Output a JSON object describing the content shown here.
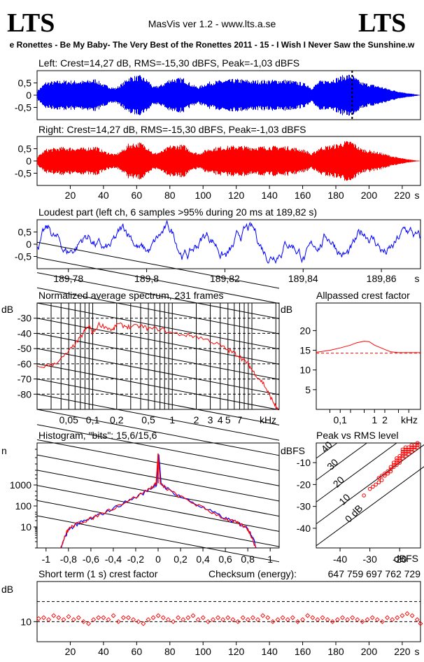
{
  "header": {
    "logo_left": "LTS",
    "logo_right": "LTS",
    "app_title": "MasVis ver 1.2 - www.lts.a.se",
    "track": "e Ronettes - Be My Baby- The Very Best of the Ronettes 2011 - 15 - I Wish I Never Saw the Sunshine.w"
  },
  "colors": {
    "left": "#0000ff",
    "right": "#ff0000",
    "grid": "#000000",
    "ref_line": "#ff0000"
  },
  "chart_data": [
    {
      "id": "left-waveform",
      "type": "area",
      "title": "Left: Crest=14,27 dB, RMS=-15,30 dBFS, Peak=-1,03 dBFS",
      "y_ticks": [
        "0,5",
        "0",
        "-0,5"
      ],
      "ylim": [
        -1,
        1
      ],
      "xlim": [
        0,
        231
      ],
      "marker_time": 189.82,
      "envelope": {
        "t": [
          0,
          5,
          15,
          28,
          35,
          40,
          47,
          52,
          55,
          62,
          67,
          70,
          75,
          80,
          88,
          93,
          97,
          103,
          110,
          120,
          130,
          140,
          150,
          158,
          163,
          165,
          170,
          180,
          185,
          189,
          195,
          205,
          215,
          222,
          231
        ],
        "a": [
          0.2,
          0.55,
          0.62,
          0.6,
          0.68,
          0.45,
          0.3,
          0.55,
          0.78,
          0.82,
          0.62,
          0.35,
          0.45,
          0.7,
          0.72,
          0.45,
          0.35,
          0.55,
          0.62,
          0.68,
          0.62,
          0.64,
          0.65,
          0.55,
          0.45,
          0.3,
          0.6,
          0.72,
          0.85,
          0.88,
          0.55,
          0.4,
          0.2,
          0.1,
          0.0
        ]
      }
    },
    {
      "id": "right-waveform",
      "type": "area",
      "title": "Right: Crest=14,27 dB, RMS=-15,30 dBFS, Peak=-1,03 dBFS",
      "y_ticks": [
        "0,5",
        "0",
        "-0,5"
      ],
      "ylim": [
        -1,
        1
      ],
      "xlim": [
        0,
        231
      ],
      "x_ticks": [
        "20",
        "40",
        "60",
        "80",
        "100",
        "120",
        "140",
        "160",
        "180",
        "200",
        "220",
        "s"
      ],
      "envelope": {
        "t": [
          0,
          5,
          15,
          28,
          35,
          40,
          47,
          52,
          55,
          62,
          67,
          70,
          75,
          80,
          88,
          93,
          97,
          103,
          110,
          120,
          130,
          140,
          150,
          158,
          163,
          165,
          170,
          180,
          185,
          189,
          195,
          205,
          215,
          222,
          231
        ],
        "a": [
          0.18,
          0.5,
          0.58,
          0.55,
          0.62,
          0.42,
          0.28,
          0.5,
          0.72,
          0.78,
          0.58,
          0.32,
          0.42,
          0.65,
          0.68,
          0.42,
          0.32,
          0.52,
          0.6,
          0.64,
          0.6,
          0.62,
          0.62,
          0.52,
          0.42,
          0.28,
          0.58,
          0.7,
          0.82,
          0.85,
          0.52,
          0.38,
          0.18,
          0.08,
          0.0
        ]
      }
    },
    {
      "id": "loudest-part",
      "type": "line",
      "title": "Loudest part (left  ch, 6 samples >95% during 20 ms at 189,82 s)",
      "y_ticks": [
        "0,5",
        "0",
        "-0,5"
      ],
      "ylim": [
        -1,
        1
      ],
      "xlim": [
        189.772,
        189.87
      ],
      "x_ticks": [
        "189,78",
        "189,8",
        "189,82",
        "189,84",
        "189,86",
        "s"
      ]
    },
    {
      "id": "avg-spectrum",
      "type": "line",
      "title": "Normalized average spectrum, 231 frames",
      "ylabel": "dB",
      "y_ticks": [
        "-30",
        "-40",
        "-50",
        "-60",
        "-70",
        "-80"
      ],
      "ylim": [
        -90,
        -20
      ],
      "x_ticks": [
        "0,05",
        "0,1",
        "0,2",
        "0,5",
        "1",
        "2",
        "3",
        "4",
        "5",
        "7",
        "kHz"
      ],
      "xlim": [
        0.02,
        22
      ],
      "freq_khz": [
        0.02,
        0.03,
        0.04,
        0.05,
        0.06,
        0.07,
        0.08,
        0.09,
        0.1,
        0.12,
        0.15,
        0.18,
        0.2,
        0.25,
        0.3,
        0.4,
        0.5,
        0.7,
        1,
        1.5,
        2,
        3,
        4,
        5,
        6,
        7,
        8,
        9,
        10,
        12,
        14,
        16,
        18,
        20,
        22
      ],
      "db": [
        -62,
        -61,
        -57,
        -52,
        -47,
        -43,
        -38,
        -35,
        -40,
        -34,
        -36,
        -38,
        -34,
        -35,
        -36,
        -35,
        -37,
        -37,
        -40,
        -41,
        -42,
        -45,
        -48,
        -51,
        -53,
        -55,
        -58,
        -60,
        -64,
        -69,
        -73,
        -79,
        -84,
        -88,
        -92
      ]
    },
    {
      "id": "allpassed-crest",
      "type": "line",
      "title": "Allpassed crest factor",
      "ylabel": "dB",
      "y_ticks": [
        "20",
        "15",
        "10",
        "5"
      ],
      "ylim": [
        0,
        27
      ],
      "x_ticks": [
        "0,1",
        "1",
        "2",
        "kHz"
      ],
      "xlim": [
        0.02,
        22
      ],
      "freq_khz": [
        0.02,
        0.05,
        0.1,
        0.2,
        0.3,
        0.5,
        0.7,
        1,
        2,
        3,
        5,
        10,
        22
      ],
      "db": [
        14.5,
        15,
        15.6,
        16.3,
        16.9,
        17.3,
        17.2,
        16.3,
        15.2,
        14.6,
        14.4,
        14.4,
        14.4
      ],
      "ref_db": 14.27
    },
    {
      "id": "histogram",
      "type": "line",
      "title": "Histogram, \"bits\": 15,6/15,6",
      "ylabel": "n",
      "y_ticks": [
        "1000",
        "100",
        "10"
      ],
      "ylim": [
        1,
        100000
      ],
      "x_ticks": [
        "-1",
        "-0,8",
        "-0,6",
        "-0,4",
        "-0,2",
        "0",
        "0,2",
        "0,4",
        "0,6",
        "0,8",
        "1"
      ],
      "xlim": [
        -1.08,
        1.08
      ],
      "x": [
        -0.87,
        -0.84,
        -0.82,
        -0.8,
        -0.75,
        -0.7,
        -0.65,
        -0.6,
        -0.5,
        -0.4,
        -0.3,
        -0.2,
        -0.1,
        -0.05,
        -0.02,
        0,
        0.02,
        0.05,
        0.1,
        0.2,
        0.3,
        0.4,
        0.5,
        0.6,
        0.65,
        0.7,
        0.75,
        0.8,
        0.82,
        0.84,
        0.87
      ],
      "n": [
        1,
        3,
        5,
        8,
        12,
        16,
        20,
        25,
        45,
        80,
        150,
        270,
        550,
        850,
        1100,
        30000,
        1100,
        850,
        550,
        270,
        150,
        80,
        45,
        25,
        20,
        16,
        12,
        8,
        5,
        3,
        1
      ]
    },
    {
      "id": "peak-vs-rms",
      "type": "scatter",
      "title": "Peak vs RMS level",
      "ylabel": "dBFS",
      "xlabel": "dBFS",
      "y_ticks": [
        "-10",
        "-20",
        "-30",
        "-40"
      ],
      "ylim": [
        -49,
        -1
      ],
      "x_ticks": [
        "-40",
        "-30",
        "-20"
      ],
      "xlim": [
        -48,
        -13
      ],
      "diag_labels": [
        "40",
        "30",
        "20",
        "10",
        "0 dB"
      ],
      "points": [
        [
          -29,
          -21
        ],
        [
          -28,
          -20
        ],
        [
          -27,
          -17
        ],
        [
          -26,
          -16
        ],
        [
          -25,
          -15
        ],
        [
          -24,
          -14
        ],
        [
          -23,
          -13
        ],
        [
          -23,
          -12
        ],
        [
          -22,
          -11
        ],
        [
          -22,
          -10
        ],
        [
          -21,
          -9
        ],
        [
          -21,
          -8
        ],
        [
          -20,
          -8
        ],
        [
          -20,
          -7
        ],
        [
          -19,
          -6
        ],
        [
          -19,
          -5
        ],
        [
          -18,
          -5
        ],
        [
          -18,
          -4
        ],
        [
          -17,
          -4
        ],
        [
          -17,
          -3
        ],
        [
          -16,
          -3
        ],
        [
          -16,
          -2
        ],
        [
          -15,
          -2
        ],
        [
          -15,
          -3
        ],
        [
          -14,
          -2
        ],
        [
          -14,
          -1
        ],
        [
          -20,
          -9
        ],
        [
          -19,
          -8
        ],
        [
          -18,
          -7
        ],
        [
          -17,
          -6
        ],
        [
          -16,
          -5
        ],
        [
          -21,
          -11
        ],
        [
          -22,
          -12
        ],
        [
          -24,
          -15
        ],
        [
          -26,
          -18
        ],
        [
          -30,
          -22
        ],
        [
          -32,
          -25
        ],
        [
          -20,
          -10
        ],
        [
          -19,
          -7
        ],
        [
          -18,
          -6
        ],
        [
          -17,
          -5
        ],
        [
          -16,
          -4
        ],
        [
          -15,
          -4
        ],
        [
          -14,
          -3
        ],
        [
          -18,
          -3
        ],
        [
          -21,
          -10
        ],
        [
          -23,
          -14
        ],
        [
          -25,
          -16
        ],
        [
          -27,
          -19
        ],
        [
          -19,
          -4
        ]
      ]
    },
    {
      "id": "short-term-crest",
      "type": "scatter",
      "title": "Short term (1 s) crest factor",
      "ylabel": "dB",
      "y_ticks": [
        "10"
      ],
      "ylim": [
        0,
        30
      ],
      "xlim": [
        0,
        231
      ],
      "x_ticks": [
        "20",
        "40",
        "60",
        "80",
        "100",
        "120",
        "140",
        "160",
        "180",
        "200",
        "220",
        "s"
      ],
      "dashed_levels": [
        20,
        10
      ],
      "seconds": [
        1,
        4,
        7,
        10,
        13,
        16,
        19,
        22,
        25,
        28,
        31,
        34,
        37,
        40,
        43,
        46,
        49,
        52,
        55,
        58,
        61,
        64,
        67,
        70,
        73,
        76,
        79,
        82,
        85,
        88,
        91,
        94,
        97,
        100,
        103,
        106,
        109,
        112,
        115,
        118,
        121,
        124,
        127,
        130,
        133,
        136,
        139,
        142,
        145,
        148,
        151,
        154,
        157,
        160,
        163,
        166,
        169,
        172,
        175,
        178,
        181,
        184,
        187,
        190,
        193,
        196,
        199,
        202,
        205,
        208,
        211,
        214,
        217,
        220,
        223,
        226,
        229,
        231
      ],
      "crest_db": [
        11.5,
        12,
        11,
        13,
        12,
        11,
        12.5,
        11,
        12,
        10,
        9,
        11,
        12,
        12,
        11,
        13,
        10,
        12,
        12,
        11,
        10,
        9,
        11,
        12,
        13,
        12,
        11,
        10,
        12,
        11,
        12,
        13,
        11,
        12,
        10,
        11,
        12,
        11,
        12,
        11,
        10,
        12,
        11,
        12,
        11,
        13,
        12,
        10,
        11,
        12,
        11,
        12,
        10,
        11,
        13,
        12,
        11,
        12,
        11,
        10,
        11,
        12,
        11,
        12,
        11,
        10,
        11,
        12,
        11,
        10,
        12,
        11,
        12,
        13,
        14,
        13,
        11,
        9
      ]
    },
    {
      "id": "checksum",
      "type": "table",
      "label": "Checksum (energy):",
      "value": "647 759 697 762 729"
    }
  ]
}
